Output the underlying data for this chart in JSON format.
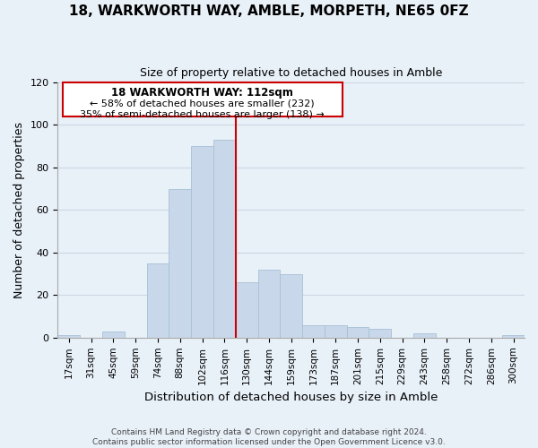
{
  "title": "18, WARKWORTH WAY, AMBLE, MORPETH, NE65 0FZ",
  "subtitle": "Size of property relative to detached houses in Amble",
  "xlabel": "Distribution of detached houses by size in Amble",
  "ylabel": "Number of detached properties",
  "bar_color": "#c8d8ea",
  "bar_edge_color": "#a8c0d4",
  "bin_labels": [
    "17sqm",
    "31sqm",
    "45sqm",
    "59sqm",
    "74sqm",
    "88sqm",
    "102sqm",
    "116sqm",
    "130sqm",
    "144sqm",
    "159sqm",
    "173sqm",
    "187sqm",
    "201sqm",
    "215sqm",
    "229sqm",
    "243sqm",
    "258sqm",
    "272sqm",
    "286sqm",
    "300sqm"
  ],
  "bar_heights": [
    1,
    0,
    3,
    0,
    35,
    70,
    90,
    93,
    26,
    32,
    30,
    6,
    6,
    5,
    4,
    0,
    2,
    0,
    0,
    0,
    1
  ],
  "vline_x": 7.5,
  "vline_color": "#cc0000",
  "annotation_title": "18 WARKWORTH WAY: 112sqm",
  "annotation_line1": "← 58% of detached houses are smaller (232)",
  "annotation_line2": "35% of semi-detached houses are larger (138) →",
  "annotation_box_color": "#ffffff",
  "annotation_box_edge": "#cc0000",
  "footer1": "Contains HM Land Registry data © Crown copyright and database right 2024.",
  "footer2": "Contains public sector information licensed under the Open Government Licence v3.0.",
  "ylim": [
    0,
    120
  ],
  "yticks": [
    0,
    20,
    40,
    60,
    80,
    100,
    120
  ],
  "grid_color": "#ccd8e4",
  "bg_color": "#e8f0f8"
}
